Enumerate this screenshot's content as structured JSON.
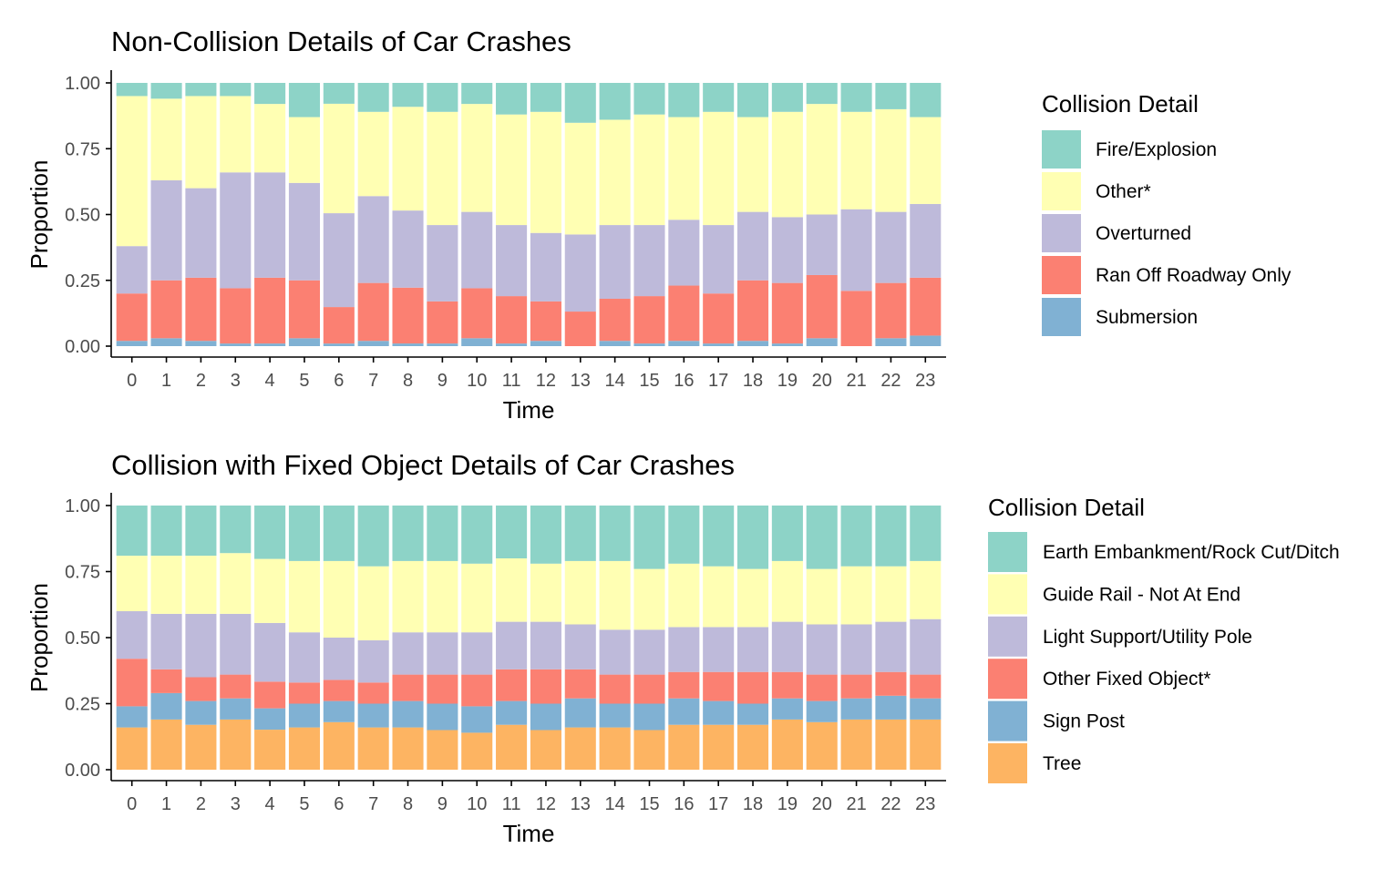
{
  "chart_data": [
    {
      "type": "bar",
      "stacked": true,
      "title": "Non-Collision Details of Car Crashes",
      "xlabel": "Time",
      "ylabel": "Proportion",
      "ylim": [
        0,
        1
      ],
      "yticks": [
        "0.00",
        "0.25",
        "0.50",
        "0.75",
        "1.00"
      ],
      "categories": [
        "0",
        "1",
        "2",
        "3",
        "4",
        "5",
        "6",
        "7",
        "8",
        "9",
        "10",
        "11",
        "12",
        "13",
        "14",
        "15",
        "16",
        "17",
        "18",
        "19",
        "20",
        "21",
        "22",
        "23"
      ],
      "legend_title": "Collision Detail",
      "legend_position": "right",
      "series": [
        {
          "name": "Fire/Explosion",
          "color": "#8DD3C7",
          "values": [
            0.05,
            0.06,
            0.05,
            0.05,
            0.08,
            0.13,
            0.08,
            0.11,
            0.09,
            0.11,
            0.08,
            0.12,
            0.11,
            0.15,
            0.14,
            0.12,
            0.13,
            0.11,
            0.13,
            0.11,
            0.08,
            0.11,
            0.1,
            0.13
          ]
        },
        {
          "name": "Other*",
          "color": "#FFFFB3",
          "values": [
            0.57,
            0.31,
            0.35,
            0.29,
            0.26,
            0.25,
            0.42,
            0.32,
            0.39,
            0.43,
            0.41,
            0.42,
            0.46,
            0.42,
            0.4,
            0.42,
            0.39,
            0.43,
            0.36,
            0.4,
            0.42,
            0.37,
            0.39,
            0.33
          ]
        },
        {
          "name": "Overturned",
          "color": "#BEBADA",
          "values": [
            0.18,
            0.38,
            0.34,
            0.44,
            0.4,
            0.37,
            0.36,
            0.33,
            0.29,
            0.29,
            0.29,
            0.27,
            0.26,
            0.29,
            0.28,
            0.27,
            0.25,
            0.26,
            0.26,
            0.25,
            0.23,
            0.31,
            0.27,
            0.28
          ]
        },
        {
          "name": "Ran Off Roadway Only",
          "color": "#FB8072",
          "values": [
            0.18,
            0.22,
            0.24,
            0.21,
            0.25,
            0.22,
            0.14,
            0.22,
            0.21,
            0.16,
            0.19,
            0.18,
            0.15,
            0.13,
            0.16,
            0.18,
            0.21,
            0.19,
            0.23,
            0.23,
            0.24,
            0.21,
            0.21,
            0.22
          ]
        },
        {
          "name": "Submersion",
          "color": "#80B1D3",
          "values": [
            0.02,
            0.03,
            0.02,
            0.01,
            0.01,
            0.03,
            0.01,
            0.02,
            0.01,
            0.01,
            0.03,
            0.01,
            0.02,
            0.0,
            0.02,
            0.01,
            0.02,
            0.01,
            0.02,
            0.01,
            0.03,
            0.0,
            0.03,
            0.04
          ]
        }
      ]
    },
    {
      "type": "bar",
      "stacked": true,
      "title": "Collision with Fixed Object Details of Car Crashes",
      "xlabel": "Time",
      "ylabel": "Proportion",
      "ylim": [
        0,
        1
      ],
      "yticks": [
        "0.00",
        "0.25",
        "0.50",
        "0.75",
        "1.00"
      ],
      "categories": [
        "0",
        "1",
        "2",
        "3",
        "4",
        "5",
        "6",
        "7",
        "8",
        "9",
        "10",
        "11",
        "12",
        "13",
        "14",
        "15",
        "16",
        "17",
        "18",
        "19",
        "20",
        "21",
        "22",
        "23"
      ],
      "legend_title": "Collision Detail",
      "legend_position": "right",
      "series": [
        {
          "name": "Earth Embankment/Rock Cut/Ditch",
          "color": "#8DD3C7",
          "values": [
            0.19,
            0.19,
            0.19,
            0.18,
            0.2,
            0.21,
            0.21,
            0.23,
            0.21,
            0.21,
            0.22,
            0.2,
            0.22,
            0.21,
            0.21,
            0.24,
            0.22,
            0.23,
            0.24,
            0.21,
            0.24,
            0.23,
            0.23,
            0.21
          ]
        },
        {
          "name": "Guide Rail - Not At End",
          "color": "#FFFFB3",
          "values": [
            0.21,
            0.22,
            0.22,
            0.23,
            0.24,
            0.27,
            0.29,
            0.28,
            0.27,
            0.27,
            0.26,
            0.24,
            0.22,
            0.24,
            0.26,
            0.23,
            0.24,
            0.23,
            0.22,
            0.23,
            0.21,
            0.22,
            0.21,
            0.22
          ]
        },
        {
          "name": "Light Support/Utility Pole",
          "color": "#BEBADA",
          "values": [
            0.18,
            0.21,
            0.24,
            0.23,
            0.22,
            0.19,
            0.16,
            0.16,
            0.16,
            0.16,
            0.16,
            0.18,
            0.18,
            0.17,
            0.17,
            0.17,
            0.17,
            0.17,
            0.17,
            0.19,
            0.19,
            0.19,
            0.19,
            0.21
          ]
        },
        {
          "name": "Other Fixed Object*",
          "color": "#FB8072",
          "values": [
            0.18,
            0.09,
            0.09,
            0.09,
            0.1,
            0.08,
            0.08,
            0.08,
            0.1,
            0.11,
            0.12,
            0.12,
            0.13,
            0.11,
            0.11,
            0.11,
            0.1,
            0.11,
            0.12,
            0.1,
            0.1,
            0.09,
            0.09,
            0.09
          ]
        },
        {
          "name": "Sign Post",
          "color": "#80B1D3",
          "values": [
            0.08,
            0.1,
            0.09,
            0.08,
            0.08,
            0.09,
            0.08,
            0.09,
            0.1,
            0.1,
            0.1,
            0.09,
            0.1,
            0.11,
            0.09,
            0.1,
            0.1,
            0.09,
            0.08,
            0.08,
            0.08,
            0.08,
            0.09,
            0.08
          ]
        },
        {
          "name": "Tree",
          "color": "#FDB462",
          "values": [
            0.16,
            0.19,
            0.17,
            0.19,
            0.15,
            0.16,
            0.18,
            0.16,
            0.16,
            0.15,
            0.14,
            0.17,
            0.15,
            0.16,
            0.16,
            0.15,
            0.17,
            0.17,
            0.17,
            0.19,
            0.18,
            0.19,
            0.19,
            0.19
          ]
        }
      ]
    }
  ]
}
